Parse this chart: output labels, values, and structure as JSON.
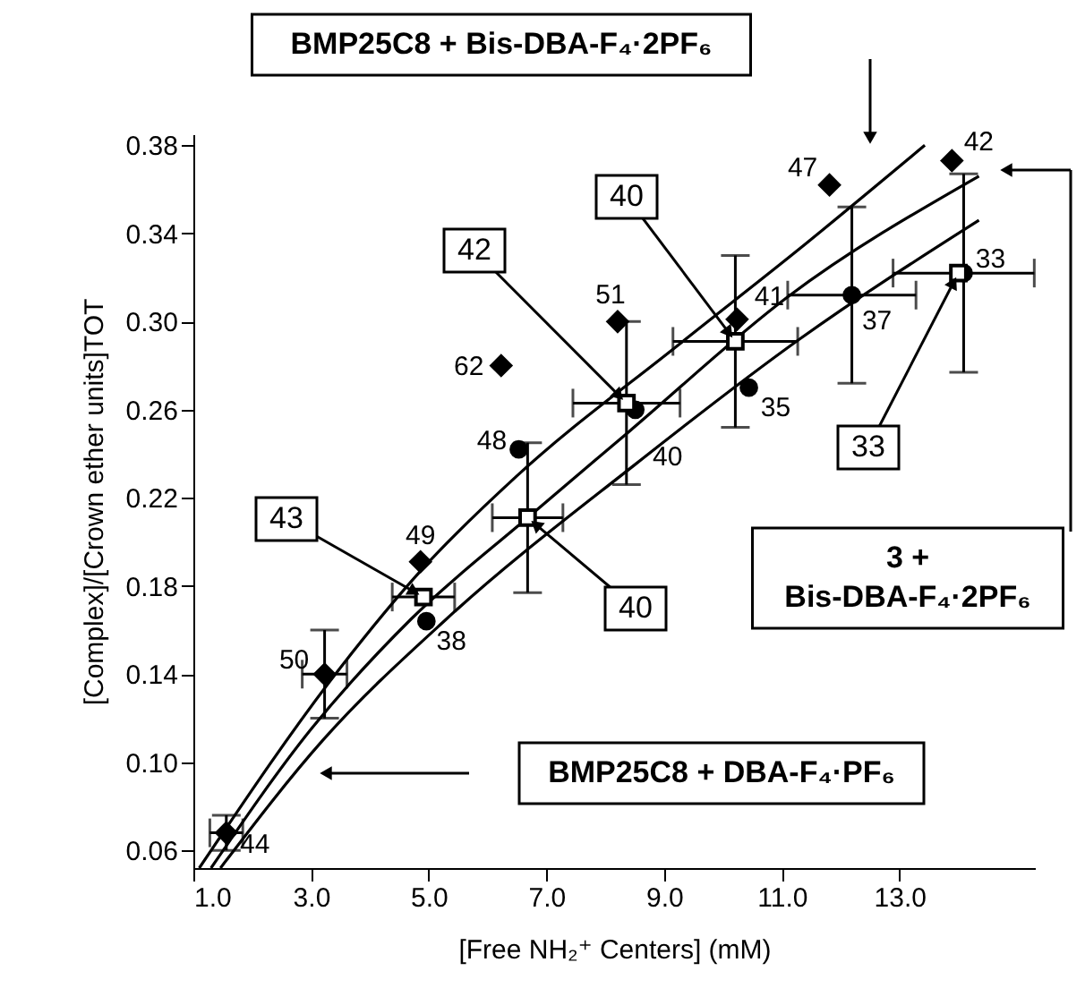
{
  "chart_data": {
    "type": "scatter",
    "xlabel": "[Free NH₂⁺ Centers] (mM)",
    "ylabel": "[Complex]/[Crown ether units]TOT",
    "xlim": [
      1.0,
      15.3
    ],
    "ylim": [
      0.052,
      0.385
    ],
    "xticks": [
      {
        "value": 1,
        "label": "1.0"
      },
      {
        "value": 3,
        "label": "3.0"
      },
      {
        "value": 5,
        "label": "5.0"
      },
      {
        "value": 7,
        "label": "7.0"
      },
      {
        "value": 9,
        "label": "9.0"
      },
      {
        "value": 11,
        "label": "11.0"
      },
      {
        "value": 13,
        "label": "13.0"
      }
    ],
    "yticks": [
      0.06,
      {
        "value": 0.1,
        "label": "0.10"
      },
      0.14,
      0.18,
      0.22,
      0.26,
      {
        "value": 0.3,
        "label": "0.30"
      },
      0.34,
      0.38
    ],
    "series": [
      {
        "type": "line",
        "color": "#000000",
        "x": [
          1.1,
          3.5,
          4.9,
          6.5,
          9.27,
          11.3,
          13.43
        ],
        "values": [
          0.052,
          0.143,
          0.188,
          0.23,
          0.29,
          0.333,
          0.38
        ]
      },
      {
        "type": "line",
        "color": "#000000",
        "x": [
          1.3,
          3.0,
          4.7,
          6.68,
          8.4,
          11.09,
          14.35
        ],
        "values": [
          0.052,
          0.115,
          0.165,
          0.211,
          0.25,
          0.311,
          0.366
        ]
      },
      {
        "type": "line",
        "color": "#000000",
        "x": [
          1.46,
          3.2,
          5.3,
          8.5,
          11.3,
          14.35
        ],
        "values": [
          0.052,
          0.11,
          0.165,
          0.235,
          0.292,
          0.346
        ]
      },
      {
        "marker": "diamond",
        "color": "#000000",
        "x": [
          1.56,
          3.23,
          4.86,
          6.23,
          8.21,
          10.24,
          11.81,
          13.89
        ],
        "values": [
          0.068,
          0.14,
          0.191,
          0.28,
          0.3,
          0.301,
          0.362,
          0.373
        ],
        "errors": [
          0.008,
          0.02,
          null,
          null,
          null,
          null,
          null,
          null
        ],
        "xerrors": [
          0.28,
          0.38,
          null,
          null,
          null,
          null,
          null,
          null
        ]
      },
      {
        "marker": "circle",
        "color": "#000000",
        "x": [
          4.96,
          6.53,
          8.51,
          10.44,
          12.19,
          14.09
        ],
        "values": [
          0.164,
          0.242,
          0.26,
          0.27,
          0.312,
          0.322
        ],
        "errors": [
          null,
          null,
          null,
          null,
          0.04,
          0.045
        ],
        "xerrors": [
          null,
          null,
          null,
          null,
          1.09,
          1.2
        ]
      },
      {
        "marker": "square",
        "color": "#000000",
        "x": [
          4.91,
          6.68,
          8.36,
          10.21,
          14.0
        ],
        "values": [
          0.175,
          0.211,
          0.263,
          0.291,
          0.322
        ],
        "errors": [
          null,
          0.034,
          0.037,
          0.039,
          null
        ],
        "xerrors": [
          0.53,
          0.6,
          0.91,
          1.06,
          null
        ]
      }
    ],
    "annotations": [
      "BMP25C8 + Bis-DBA-F₄·2PF₆",
      "3 +\nBis-DBA-F₄·2PF₆",
      "BMP25C8 + DBA-F₄·PF₆",
      {
        "text": "40",
        "x": 8.51,
        "y": 0.26
      },
      {
        "text": "40",
        "x": 6.68,
        "y": 0.211
      },
      {
        "text": "40",
        "x": 10.21,
        "y": 0.291
      },
      {
        "text": "43",
        "x": 4.91,
        "y": 0.175
      },
      {
        "text": "42",
        "x": 8.36,
        "y": 0.263
      },
      {
        "text": "33",
        "x": 14.0,
        "y": 0.322
      },
      {
        "text": "44",
        "x": 1.56,
        "y": 0.068
      },
      {
        "text": "50",
        "x": 3.23,
        "y": 0.14
      },
      {
        "text": "49",
        "x": 4.86,
        "y": 0.191
      },
      {
        "text": "62",
        "x": 6.23,
        "y": 0.28
      },
      {
        "text": "51",
        "x": 8.21,
        "y": 0.3
      },
      {
        "text": "41",
        "x": 10.24,
        "y": 0.301
      },
      {
        "text": "47",
        "x": 11.81,
        "y": 0.362
      },
      {
        "text": "42",
        "x": 13.89,
        "y": 0.373
      },
      {
        "text": "38",
        "x": 4.96,
        "y": 0.164
      },
      {
        "text": "48",
        "x": 6.53,
        "y": 0.242
      },
      {
        "text": "35",
        "x": 10.44,
        "y": 0.27
      },
      {
        "text": "37",
        "x": 12.19,
        "y": 0.312
      },
      {
        "text": "33",
        "x": 14.09,
        "y": 0.322
      }
    ]
  }
}
